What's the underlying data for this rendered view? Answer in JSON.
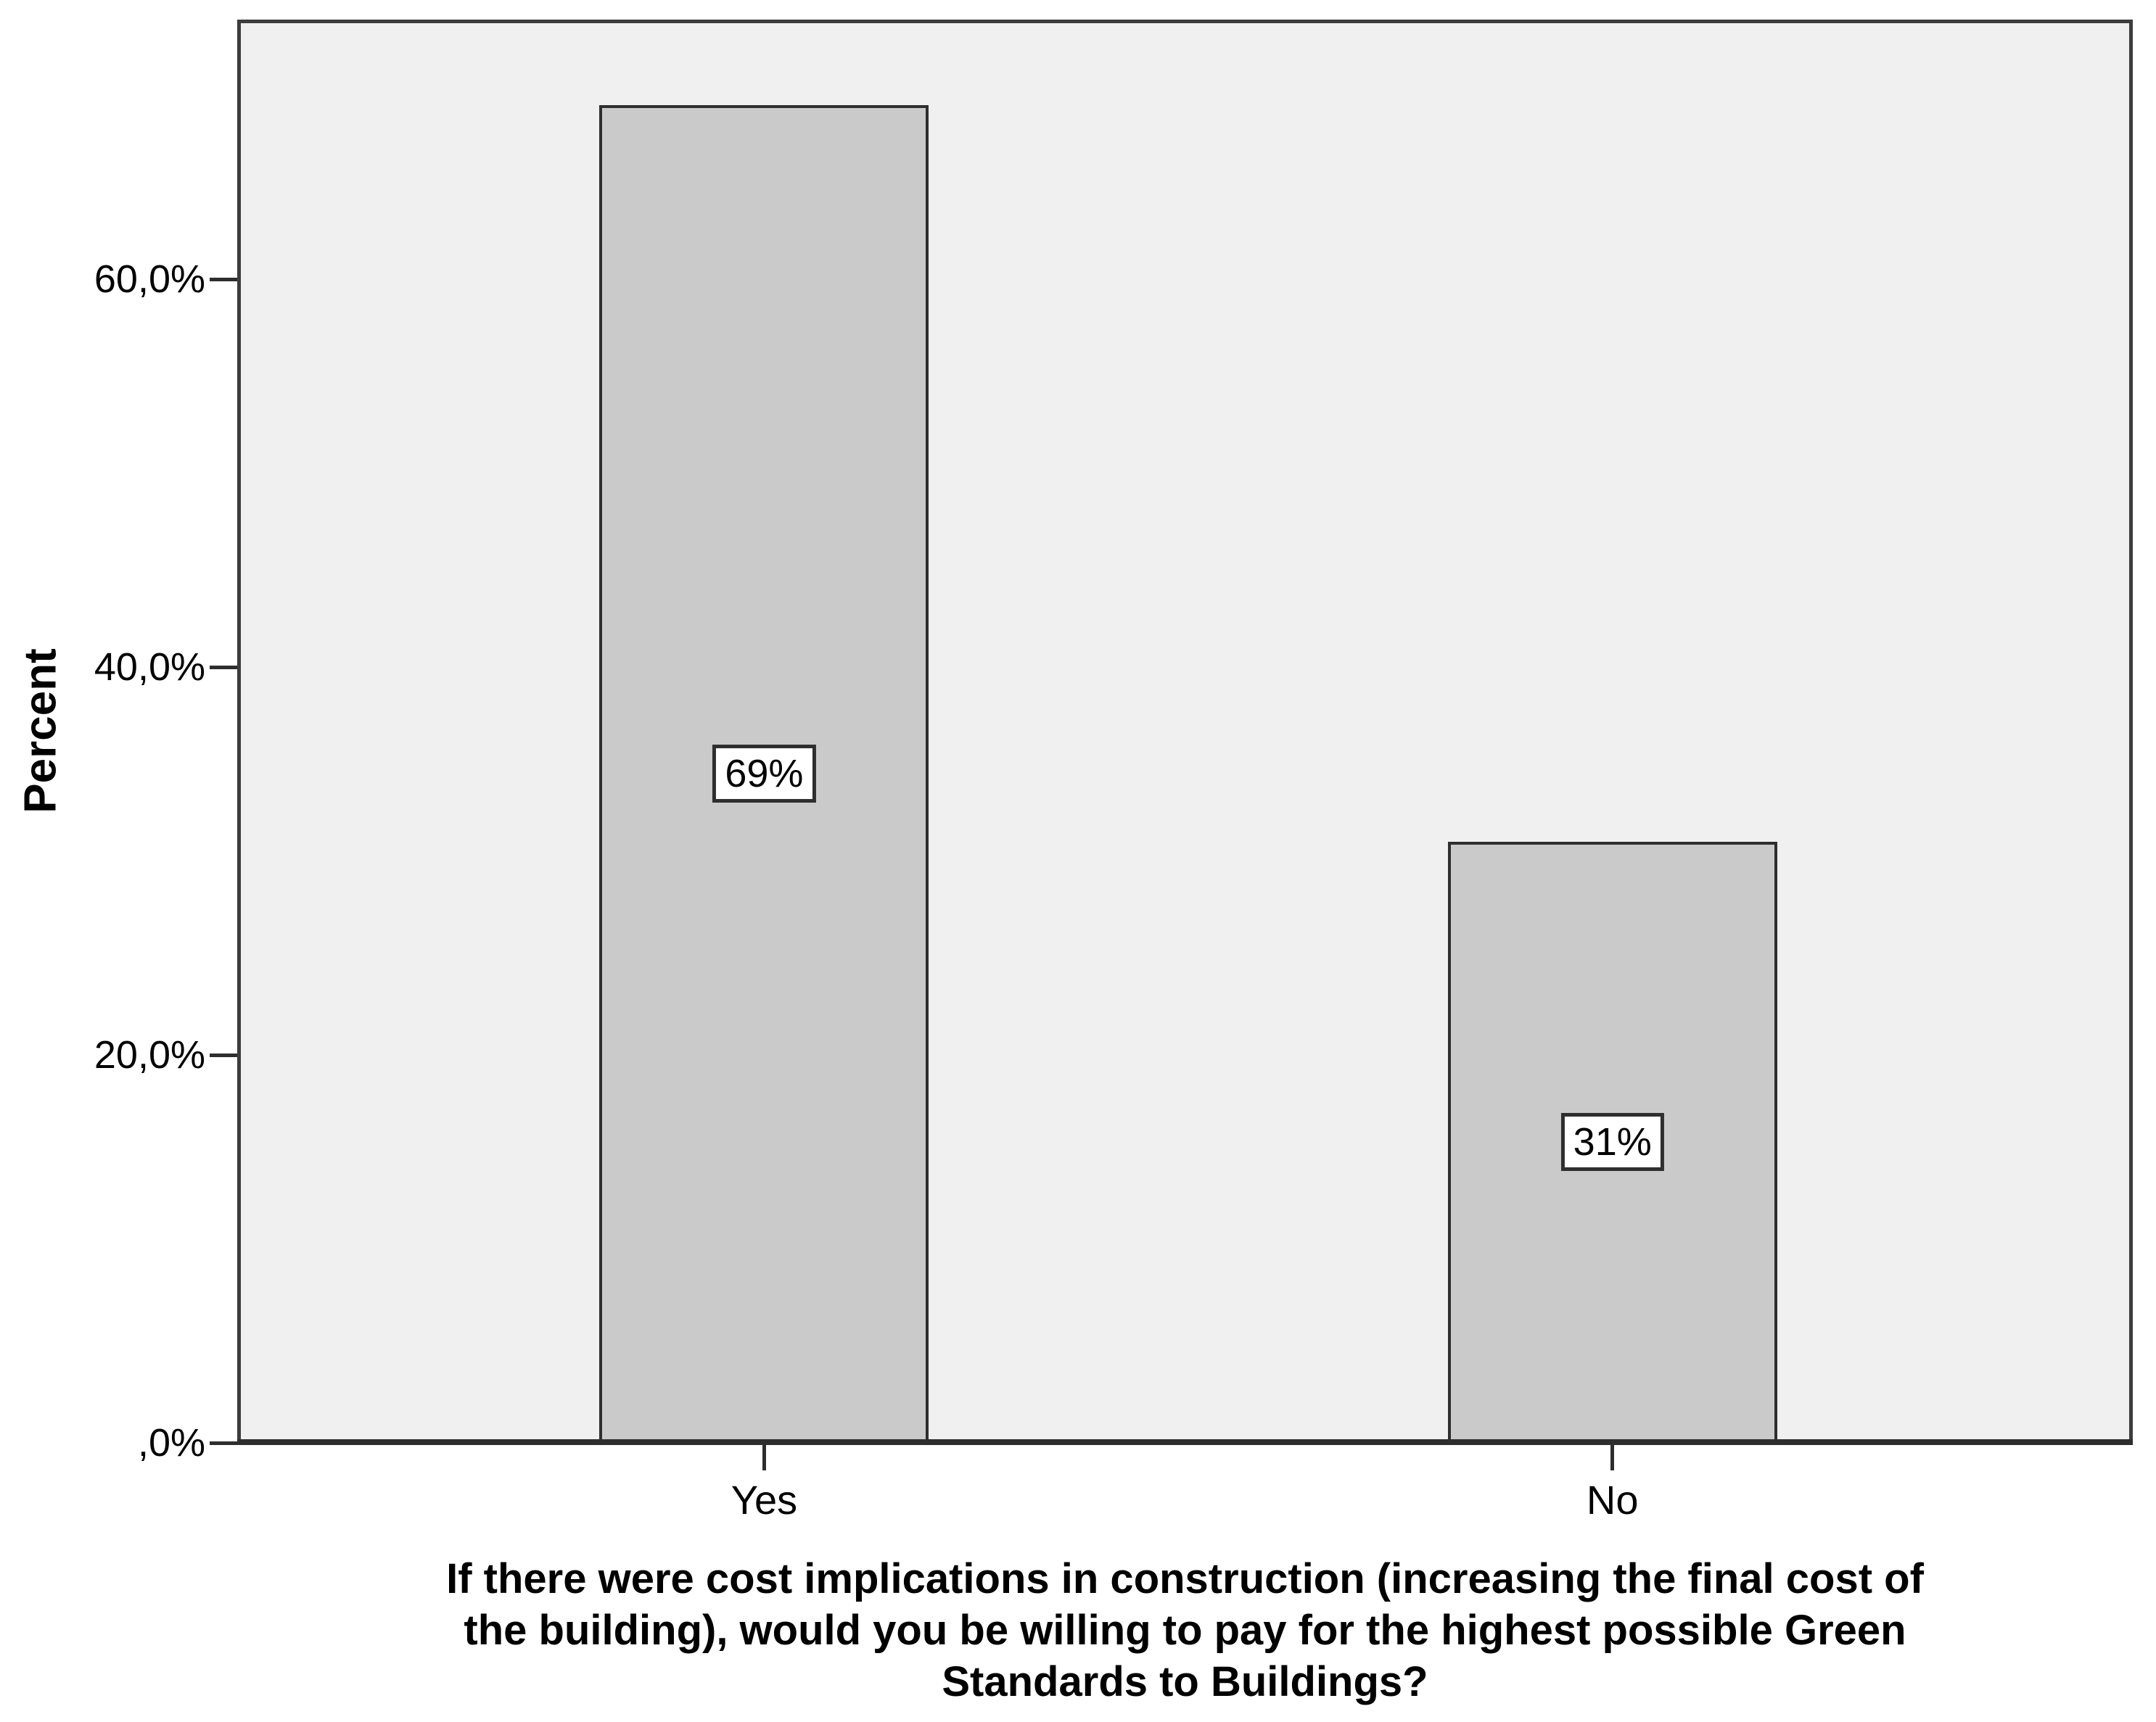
{
  "colors": {
    "page_background": "#ffffff",
    "plot_background": "#f0f0f0",
    "frame_border": "#3c3c3c",
    "bar_fill": "#cacaca",
    "bar_border": "#2e2e2e",
    "value_box_background": "#ffffff",
    "value_box_border": "#2e2e2e",
    "text": "#000000"
  },
  "chart_data": {
    "type": "bar",
    "title": "",
    "categories": [
      "Yes",
      "No"
    ],
    "values": [
      69,
      31
    ],
    "value_labels": [
      "69%",
      "31%"
    ],
    "ylabel": "Percent",
    "xlabel": "If there were cost implications in construction (increasing the final cost of\nthe building), would you be willing to pay for the highest possible Green\nStandards to Buildings?",
    "ylim": [
      0,
      73.4
    ],
    "yticks": [
      0,
      20,
      40,
      60
    ],
    "ytick_labels": [
      ",0%",
      "20,0%",
      "40,0%",
      "60,0%"
    ],
    "grid": false,
    "legend": false,
    "value_label_position": "center-of-bar"
  }
}
